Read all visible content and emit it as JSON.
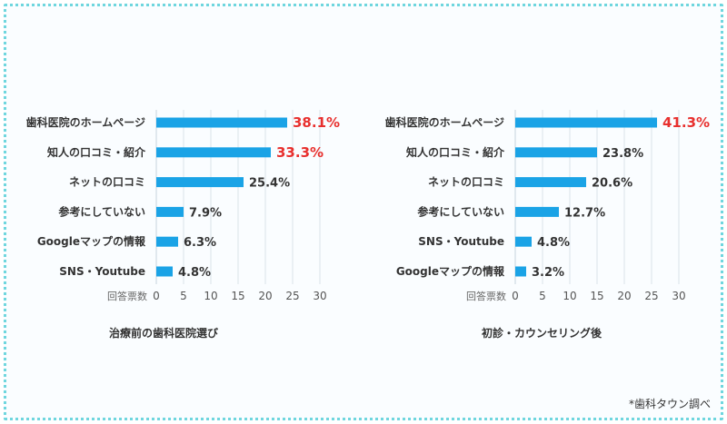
{
  "source_note": "*歯科タウン調べ",
  "colors": {
    "bar": "#1aa3e6",
    "highlight": "#e8302e",
    "grid": "#d9e3ea",
    "border": "#6fd6de"
  },
  "chart_data": [
    {
      "type": "bar",
      "orientation": "horizontal",
      "title": "治療前の歯科医院選び",
      "xlabel": "回答票数",
      "xlim": [
        0,
        30
      ],
      "ticks": [
        0,
        5,
        10,
        15,
        20,
        25,
        30
      ],
      "grid": true,
      "categories": [
        "歯科医院のホームページ",
        "知人の口コミ・紹介",
        "ネットの口コミ",
        "参考にしていない",
        "Googleマップの情報",
        "SNS・Youtube"
      ],
      "values": [
        24,
        21,
        16,
        5,
        4,
        3
      ],
      "labels": [
        "38.1%",
        "33.3%",
        "25.4%",
        "7.9%",
        "6.3%",
        "4.8%"
      ],
      "highlight": [
        true,
        true,
        false,
        false,
        false,
        false
      ]
    },
    {
      "type": "bar",
      "orientation": "horizontal",
      "title": "初診・カウンセリング後",
      "xlabel": "回答票数",
      "xlim": [
        0,
        30
      ],
      "ticks": [
        0,
        5,
        10,
        15,
        20,
        25,
        30
      ],
      "grid": true,
      "categories": [
        "歯科医院のホームページ",
        "知人の口コミ・紹介",
        "ネットの口コミ",
        "参考にしていない",
        "SNS・Youtube",
        "Googleマップの情報"
      ],
      "values": [
        26,
        15,
        13,
        8,
        3,
        2
      ],
      "labels": [
        "41.3%",
        "23.8%",
        "20.6%",
        "12.7%",
        "4.8%",
        "3.2%"
      ],
      "highlight": [
        true,
        false,
        false,
        false,
        false,
        false
      ]
    }
  ]
}
